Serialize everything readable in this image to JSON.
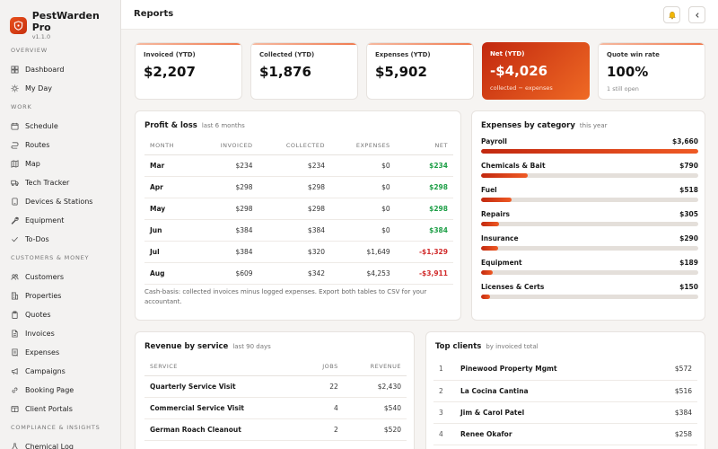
{
  "app": {
    "name": "PestWarden Pro",
    "version": "v1.1.0"
  },
  "sidebar": {
    "sections": [
      {
        "title": "OVERVIEW",
        "items": [
          {
            "label": "Dashboard",
            "icon": "grid-icon"
          },
          {
            "label": "My Day",
            "icon": "sun-icon"
          }
        ]
      },
      {
        "title": "WORK",
        "items": [
          {
            "label": "Schedule",
            "icon": "calendar-icon"
          },
          {
            "label": "Routes",
            "icon": "route-icon"
          },
          {
            "label": "Map",
            "icon": "map-icon"
          },
          {
            "label": "Tech Tracker",
            "icon": "truck-icon"
          },
          {
            "label": "Devices & Stations",
            "icon": "device-icon"
          },
          {
            "label": "Equipment",
            "icon": "wrench-icon"
          },
          {
            "label": "To-Dos",
            "icon": "check-icon"
          }
        ]
      },
      {
        "title": "CUSTOMERS & MONEY",
        "items": [
          {
            "label": "Customers",
            "icon": "users-icon"
          },
          {
            "label": "Properties",
            "icon": "building-icon"
          },
          {
            "label": "Quotes",
            "icon": "clipboard-icon"
          },
          {
            "label": "Invoices",
            "icon": "file-icon"
          },
          {
            "label": "Expenses",
            "icon": "receipt-icon"
          },
          {
            "label": "Campaigns",
            "icon": "megaphone-icon"
          },
          {
            "label": "Booking Page",
            "icon": "link-icon"
          },
          {
            "label": "Client Portals",
            "icon": "portal-icon"
          }
        ]
      },
      {
        "title": "COMPLIANCE & INSIGHTS",
        "items": [
          {
            "label": "Chemical Log",
            "icon": "flask-icon"
          }
        ]
      }
    ]
  },
  "header": {
    "title": "Reports",
    "bell_icon": "bell-icon",
    "collapse_icon": "chevron-left-icon"
  },
  "kpis": [
    {
      "label": "Invoiced (YTD)",
      "value": "$2,207",
      "sub": ""
    },
    {
      "label": "Collected (YTD)",
      "value": "$1,876",
      "sub": ""
    },
    {
      "label": "Expenses (YTD)",
      "value": "$5,902",
      "sub": ""
    },
    {
      "label": "Net (YTD)",
      "value": "-$4,026",
      "sub": "collected − expenses"
    },
    {
      "label": "Quote win rate",
      "value": "100%",
      "sub": "1 still open"
    }
  ],
  "profit_loss": {
    "title": "Profit & loss",
    "subtitle": "last 6 months",
    "columns": [
      "MONTH",
      "INVOICED",
      "COLLECTED",
      "EXPENSES",
      "NET"
    ],
    "rows": [
      {
        "month": "Mar",
        "invoiced": "$234",
        "collected": "$234",
        "expenses": "$0",
        "net": "$234",
        "net_sign": "pos"
      },
      {
        "month": "Apr",
        "invoiced": "$298",
        "collected": "$298",
        "expenses": "$0",
        "net": "$298",
        "net_sign": "pos"
      },
      {
        "month": "May",
        "invoiced": "$298",
        "collected": "$298",
        "expenses": "$0",
        "net": "$298",
        "net_sign": "pos"
      },
      {
        "month": "Jun",
        "invoiced": "$384",
        "collected": "$384",
        "expenses": "$0",
        "net": "$384",
        "net_sign": "pos"
      },
      {
        "month": "Jul",
        "invoiced": "$384",
        "collected": "$320",
        "expenses": "$1,649",
        "net": "-$1,329",
        "net_sign": "neg"
      },
      {
        "month": "Aug",
        "invoiced": "$609",
        "collected": "$342",
        "expenses": "$4,253",
        "net": "-$3,911",
        "net_sign": "neg"
      }
    ],
    "note": "Cash-basis: collected invoices minus logged expenses. Export both tables to CSV for your accountant."
  },
  "expenses_by_category": {
    "title": "Expenses by category",
    "subtitle": "this year",
    "items": [
      {
        "name": "Payroll",
        "amount": "$3,660",
        "fraction": 1.0
      },
      {
        "name": "Chemicals & Bait",
        "amount": "$790",
        "fraction": 0.216
      },
      {
        "name": "Fuel",
        "amount": "$518",
        "fraction": 0.142
      },
      {
        "name": "Repairs",
        "amount": "$305",
        "fraction": 0.083
      },
      {
        "name": "Insurance",
        "amount": "$290",
        "fraction": 0.079
      },
      {
        "name": "Equipment",
        "amount": "$189",
        "fraction": 0.052
      },
      {
        "name": "Licenses & Certs",
        "amount": "$150",
        "fraction": 0.041
      }
    ]
  },
  "revenue_by_service": {
    "title": "Revenue by service",
    "subtitle": "last 90 days",
    "columns": [
      "SERVICE",
      "JOBS",
      "REVENUE"
    ],
    "rows": [
      {
        "service": "Quarterly Service Visit",
        "jobs": "22",
        "revenue": "$2,430"
      },
      {
        "service": "Commercial Service Visit",
        "jobs": "4",
        "revenue": "$540"
      },
      {
        "service": "German Roach Cleanout",
        "jobs": "2",
        "revenue": "$520"
      }
    ]
  },
  "top_clients": {
    "title": "Top clients",
    "subtitle": "by invoiced total",
    "rows": [
      {
        "rank": "1",
        "name": "Pinewood Property Mgmt",
        "amount": "$572"
      },
      {
        "rank": "2",
        "name": "La Cocina Cantina",
        "amount": "$516"
      },
      {
        "rank": "3",
        "name": "Jim & Carol Patel",
        "amount": "$384"
      },
      {
        "rank": "4",
        "name": "Renee Okafor",
        "amount": "$258"
      }
    ]
  }
}
